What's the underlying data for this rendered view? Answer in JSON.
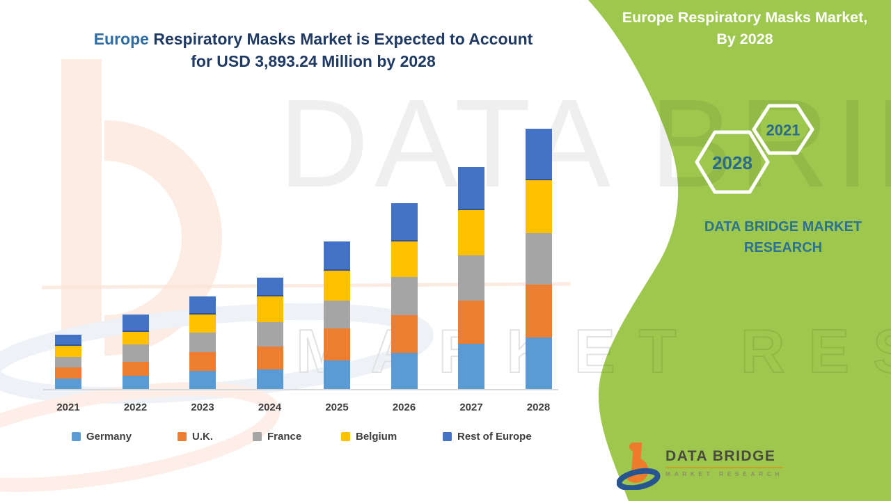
{
  "title": {
    "part1": "Europe",
    "part2": " Respiratory Masks Market is Expected to Account",
    "line2": "for USD 3,893.24 Million by 2028",
    "accent_color": "#2E6DA4",
    "color": "#1F3A63"
  },
  "side_panel": {
    "bg_color": "#9DC74D",
    "heading_line1": "Europe Respiratory Masks Market,",
    "heading_line2": "By 2028",
    "hexagon_small_label": "2021",
    "hexagon_large_label": "2028",
    "hexagon_text_color": "#2A6A8E",
    "brand_line1": "DATA BRIDGE MARKET",
    "brand_line2": "RESEARCH",
    "brand_color": "#2B7293"
  },
  "logo": {
    "name": "DATA BRIDGE",
    "tagline": "MARKET RESEARCH",
    "orange": "#EE7B2C",
    "blue": "#27558F"
  },
  "watermark": {
    "big_text": "DATA BRIDGE",
    "outline_text": "MARKET RESEARCH"
  },
  "chart_data": {
    "type": "bar",
    "stacked": true,
    "title": "Europe Respiratory Masks Market is Expected to Account for USD 3,893.24 Million by 2028",
    "unit": "USD Million",
    "categories": [
      "2021",
      "2022",
      "2023",
      "2024",
      "2025",
      "2026",
      "2027",
      "2028"
    ],
    "series": [
      {
        "name": "Germany",
        "color": "#5B9BD5",
        "values": [
          162,
          208,
          277,
          301,
          433,
          547,
          682,
          779
        ]
      },
      {
        "name": "U.K.",
        "color": "#ED7D31",
        "values": [
          166,
          208,
          283,
          346,
          478,
          568,
          651,
          789
        ]
      },
      {
        "name": "France",
        "color": "#A5A5A5",
        "values": [
          156,
          260,
          288,
          363,
          415,
          571,
          675,
          768
        ]
      },
      {
        "name": "Belgium",
        "color": "#FFC000",
        "values": [
          170,
          190,
          270,
          381,
          450,
          529,
          675,
          789
        ]
      },
      {
        "name": "Rest of Europe",
        "color": "#4472C4",
        "values": [
          169,
          260,
          273,
          280,
          439,
          571,
          640,
          768
        ]
      }
    ],
    "totals_estimated": [
      823,
      1126,
      1391,
      1671,
      2215,
      2786,
      3323,
      3893.24
    ],
    "labeled_value": "USD 3,893.24 Million by 2028",
    "value_note": "Only the 2028 total is labeled; per-segment values estimated from bar heights",
    "ylim": [
      0,
      4000
    ],
    "grid": false,
    "y_axis_visible": false,
    "legend_position": "bottom",
    "axis_label_color": "#3F3F3F"
  }
}
